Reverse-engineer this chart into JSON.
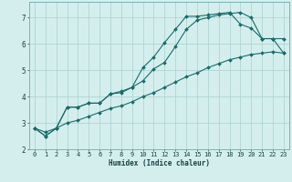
{
  "xlabel": "Humidex (Indice chaleur)",
  "bg_color": "#d4eeee",
  "grid_color": "#afd4d4",
  "line_color": "#1a6b6b",
  "xlim": [
    -0.5,
    23.5
  ],
  "ylim": [
    2.0,
    7.6
  ],
  "xticks": [
    0,
    1,
    2,
    3,
    4,
    5,
    6,
    7,
    8,
    9,
    10,
    11,
    12,
    13,
    14,
    15,
    16,
    17,
    18,
    19,
    20,
    21,
    22,
    23
  ],
  "yticks": [
    2,
    3,
    4,
    5,
    6,
    7
  ],
  "series1_x": [
    0,
    1,
    2,
    3,
    4,
    5,
    6,
    7,
    8,
    9,
    10,
    11,
    12,
    13,
    14,
    15,
    16,
    17,
    18,
    19,
    20,
    21,
    22,
    23
  ],
  "series1_y": [
    2.8,
    2.5,
    2.8,
    3.6,
    3.6,
    3.75,
    3.75,
    4.1,
    4.15,
    4.35,
    5.1,
    5.5,
    6.05,
    6.55,
    7.05,
    7.05,
    7.1,
    7.15,
    7.2,
    6.75,
    6.6,
    6.2,
    6.2,
    6.2
  ],
  "series2_x": [
    0,
    1,
    2,
    3,
    4,
    5,
    6,
    7,
    8,
    9,
    10,
    11,
    12,
    13,
    14,
    15,
    16,
    17,
    18,
    19,
    20,
    21,
    22,
    23
  ],
  "series2_y": [
    2.8,
    2.5,
    2.8,
    3.6,
    3.6,
    3.75,
    3.75,
    4.1,
    4.2,
    4.35,
    4.6,
    5.05,
    5.3,
    5.9,
    6.55,
    6.9,
    7.0,
    7.1,
    7.15,
    7.2,
    7.0,
    6.2,
    6.2,
    5.65
  ],
  "series3_x": [
    0,
    1,
    2,
    3,
    4,
    5,
    6,
    7,
    8,
    9,
    10,
    11,
    12,
    13,
    14,
    15,
    16,
    17,
    18,
    19,
    20,
    21,
    22,
    23
  ],
  "series3_y": [
    2.8,
    2.65,
    2.8,
    3.0,
    3.1,
    3.25,
    3.4,
    3.55,
    3.65,
    3.8,
    4.0,
    4.15,
    4.35,
    4.55,
    4.75,
    4.9,
    5.1,
    5.25,
    5.4,
    5.5,
    5.6,
    5.65,
    5.7,
    5.65
  ]
}
